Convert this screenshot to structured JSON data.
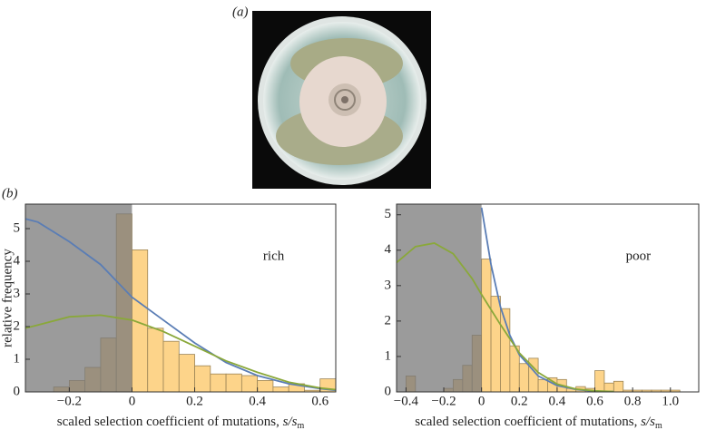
{
  "panel_labels": [
    "(a)",
    "(b)"
  ],
  "chart_data": [
    {
      "type": "histogram",
      "annotation": "rich",
      "y_label": "relative frequency",
      "x_label": [
        "scaled  selection coefficient of mutations, ",
        "s/s",
        "m"
      ],
      "bins": [
        -0.25,
        -0.2,
        -0.15,
        -0.1,
        -0.05,
        0,
        0.05,
        0.1,
        0.15,
        0.2,
        0.25,
        0.3,
        0.35,
        0.4,
        0.45,
        0.5,
        0.55,
        0.6,
        0.65
      ],
      "counts": [
        0.15,
        0.35,
        0.75,
        1.65,
        5.45,
        4.35,
        1.95,
        1.55,
        1.15,
        0.8,
        0.55,
        0.55,
        0.5,
        0.35,
        0.15,
        0.25,
        0.05,
        0.4
      ],
      "color": "#fdd48a",
      "shade_below": 0,
      "shade_color": "#7a7a7a",
      "curves": [
        {
          "color": "#5a7db5",
          "x": [
            -0.34,
            -0.3,
            -0.2,
            -0.1,
            0,
            0.1,
            0.2,
            0.3,
            0.4,
            0.5,
            0.6,
            0.65
          ],
          "values": [
            5.3,
            5.2,
            4.6,
            3.9,
            2.9,
            2.2,
            1.5,
            0.9,
            0.5,
            0.25,
            0.1,
            0.05
          ]
        },
        {
          "color": "#8aa83a",
          "x": [
            -0.34,
            -0.3,
            -0.2,
            -0.1,
            0,
            0.1,
            0.2,
            0.3,
            0.4,
            0.5,
            0.6,
            0.65
          ],
          "values": [
            1.95,
            2.05,
            2.3,
            2.35,
            2.2,
            1.85,
            1.4,
            0.95,
            0.6,
            0.3,
            0.12,
            0.07
          ]
        }
      ],
      "xlim": [
        -0.34,
        0.65
      ],
      "ylim": [
        0,
        5.75
      ],
      "xticks": [
        {
          "value": -0.2,
          "label": "−0.2"
        },
        0,
        0.2,
        0.4,
        0.6
      ],
      "yticks": [
        0,
        1,
        2,
        3,
        4,
        5
      ]
    },
    {
      "type": "histogram",
      "annotation": "poor",
      "x_label": [
        "scaled  selection coefficient of mutations, ",
        "s/s",
        "m"
      ],
      "bins": [
        -0.4,
        -0.35,
        -0.3,
        -0.25,
        -0.2,
        -0.15,
        -0.1,
        -0.05,
        0,
        0.05,
        0.1,
        0.15,
        0.2,
        0.25,
        0.3,
        0.35,
        0.4,
        0.45,
        0.5,
        0.55,
        0.6,
        0.65,
        0.7,
        0.75,
        0.8,
        0.85,
        0.9,
        0.95,
        1.0,
        1.05
      ],
      "counts": [
        0.45,
        0,
        0,
        0,
        0.1,
        0.35,
        0.75,
        1.6,
        3.75,
        2.7,
        2.35,
        1.3,
        0.8,
        0.95,
        0.35,
        0.4,
        0.35,
        0.1,
        0.15,
        0.1,
        0.6,
        0.25,
        0.3,
        0.05,
        0.05,
        0.05,
        0.05,
        0.05,
        0.05
      ],
      "color": "#fdd48a",
      "shade_below": 0,
      "shade_color": "#7a7a7a",
      "curves": [
        {
          "color": "#5a7db5",
          "x": [
            0,
            0.05,
            0.1,
            0.15,
            0.2,
            0.3,
            0.4,
            0.5,
            0.6,
            0.7
          ],
          "values": [
            5.2,
            3.6,
            2.4,
            1.6,
            1.05,
            0.45,
            0.18,
            0.07,
            0.02,
            0.01
          ]
        },
        {
          "color": "#8aa83a",
          "x": [
            -0.45,
            -0.35,
            -0.25,
            -0.15,
            -0.05,
            0,
            0.1,
            0.2,
            0.3,
            0.4,
            0.5,
            0.6,
            0.7
          ],
          "values": [
            3.65,
            4.1,
            4.2,
            3.9,
            3.2,
            2.75,
            1.9,
            1.1,
            0.55,
            0.22,
            0.08,
            0.03,
            0.01
          ]
        }
      ],
      "xlim": [
        -0.45,
        1.15
      ],
      "ylim": [
        0,
        5.3
      ],
      "xticks": [
        {
          "value": -0.4,
          "label": "−0.4"
        },
        {
          "value": -0.2,
          "label": "−0.2"
        },
        0,
        0.2,
        0.4,
        0.6,
        0.8,
        {
          "value": 1,
          "label": "1.0"
        }
      ],
      "yticks": [
        0,
        1,
        2,
        3,
        4,
        5
      ]
    }
  ]
}
